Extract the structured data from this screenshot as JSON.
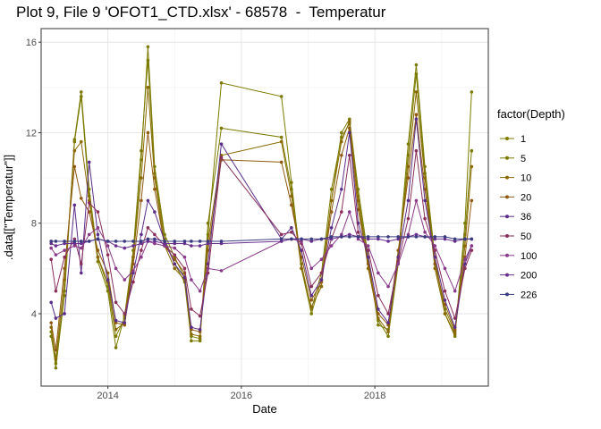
{
  "chart_data": {
    "type": "line",
    "title": "Plot 9, File 9 'OFOT1_CTD.xlsx' - 68578  -  Temperatur",
    "xlabel": "Date",
    "ylabel": ".data[[\"Temperatur\"]]",
    "xlim": [
      2013.0,
      2019.7
    ],
    "ylim": [
      0.8,
      16.6
    ],
    "x_ticks": [
      2014,
      2016,
      2018
    ],
    "x_tick_labels": [
      "2014",
      "2016",
      "2018"
    ],
    "y_ticks": [
      4,
      8,
      12,
      16
    ],
    "y_tick_labels": [
      "4",
      "8",
      "12",
      "16"
    ],
    "grid": true,
    "legend": {
      "title": "factor(Depth)",
      "position": "right"
    },
    "series": [
      {
        "name": "1",
        "color": "#7c7c00",
        "x": [
          2013.15,
          2013.22,
          2013.35,
          2013.5,
          2013.6,
          2013.72,
          2013.85,
          2014.0,
          2014.12,
          2014.25,
          2014.38,
          2014.5,
          2014.6,
          2014.7,
          2014.85,
          2015.0,
          2015.15,
          2015.25,
          2015.38,
          2015.5,
          2015.7,
          2016.6,
          2016.75,
          2016.9,
          2017.05,
          2017.2,
          2017.35,
          2017.5,
          2017.62,
          2017.75,
          2017.9,
          2018.05,
          2018.2,
          2018.35,
          2018.5,
          2018.62,
          2018.75,
          2018.9,
          2019.05,
          2019.2,
          2019.35,
          2019.45
        ],
        "y": [
          3.2,
          1.6,
          4.8,
          11.7,
          13.8,
          9.5,
          6.5,
          5.2,
          3.0,
          3.8,
          6.5,
          10.8,
          15.8,
          10.5,
          7.5,
          6.5,
          5.6,
          3.0,
          2.9,
          7.5,
          14.2,
          13.6,
          9.8,
          6.0,
          4.0,
          5.5,
          9.0,
          12.0,
          12.6,
          9.5,
          6.5,
          3.5,
          3.3,
          6.5,
          11.5,
          15.0,
          10.5,
          6.5,
          4.0,
          3.0,
          8.0,
          13.8
        ]
      },
      {
        "name": "5",
        "color": "#7a7a00",
        "x": [
          2013.15,
          2013.22,
          2013.35,
          2013.5,
          2013.6,
          2013.72,
          2013.85,
          2014.0,
          2014.12,
          2014.25,
          2014.38,
          2014.5,
          2014.6,
          2014.7,
          2014.85,
          2015.0,
          2015.15,
          2015.25,
          2015.38,
          2015.5,
          2015.7,
          2016.6,
          2016.75,
          2016.9,
          2017.05,
          2017.2,
          2017.35,
          2017.5,
          2017.62,
          2017.75,
          2017.9,
          2018.05,
          2018.2,
          2018.35,
          2018.5,
          2018.62,
          2018.75,
          2018.9,
          2019.05,
          2019.2,
          2019.35,
          2019.45
        ],
        "y": [
          3.0,
          1.8,
          5.0,
          11.6,
          13.6,
          9.2,
          6.3,
          5.0,
          2.5,
          3.9,
          6.8,
          11.2,
          15.2,
          10.2,
          7.3,
          6.2,
          5.4,
          2.8,
          2.8,
          8.0,
          12.2,
          11.8,
          9.5,
          6.2,
          4.2,
          5.8,
          9.5,
          11.8,
          12.4,
          9.2,
          6.3,
          3.7,
          3.0,
          6.2,
          11.0,
          14.6,
          10.2,
          6.2,
          4.2,
          3.2,
          7.5,
          11.2
        ]
      },
      {
        "name": "10",
        "color": "#8a6a00",
        "x": [
          2013.15,
          2013.22,
          2013.35,
          2013.5,
          2013.6,
          2013.72,
          2013.85,
          2014.0,
          2014.12,
          2014.25,
          2014.38,
          2014.5,
          2014.6,
          2014.7,
          2014.85,
          2015.0,
          2015.15,
          2015.25,
          2015.38,
          2015.5,
          2015.7,
          2016.6,
          2016.75,
          2016.9,
          2017.05,
          2017.2,
          2017.35,
          2017.5,
          2017.62,
          2017.75,
          2017.9,
          2018.05,
          2018.2,
          2018.35,
          2018.5,
          2018.62,
          2018.75,
          2018.9,
          2019.05,
          2019.2,
          2019.35,
          2019.45
        ],
        "y": [
          3.4,
          2.0,
          5.5,
          11.2,
          11.6,
          9.0,
          6.5,
          5.4,
          3.3,
          3.6,
          6.5,
          10.0,
          14.0,
          10.0,
          7.0,
          6.0,
          5.5,
          3.1,
          3.0,
          7.2,
          11.0,
          11.6,
          9.2,
          6.0,
          4.3,
          5.2,
          9.0,
          11.6,
          12.5,
          9.0,
          6.0,
          3.8,
          3.2,
          6.5,
          10.5,
          13.8,
          10.0,
          6.0,
          4.0,
          3.1,
          7.0,
          10.5
        ]
      },
      {
        "name": "20",
        "color": "#8f5a10",
        "x": [
          2013.15,
          2013.22,
          2013.35,
          2013.5,
          2013.6,
          2013.72,
          2013.85,
          2014.0,
          2014.12,
          2014.25,
          2014.38,
          2014.5,
          2014.6,
          2014.7,
          2014.85,
          2015.0,
          2015.15,
          2015.25,
          2015.38,
          2015.5,
          2015.7,
          2016.6,
          2016.75,
          2016.9,
          2017.05,
          2017.2,
          2017.35,
          2017.5,
          2017.62,
          2017.75,
          2017.9,
          2018.05,
          2018.2,
          2018.35,
          2018.5,
          2018.62,
          2018.75,
          2018.9,
          2019.05,
          2019.2,
          2019.35,
          2019.45
        ],
        "y": [
          3.6,
          2.4,
          6.0,
          10.5,
          9.1,
          8.5,
          6.8,
          5.8,
          3.6,
          3.5,
          6.2,
          9.0,
          12.0,
          9.5,
          7.0,
          6.4,
          5.8,
          3.3,
          3.2,
          6.8,
          10.8,
          10.7,
          8.8,
          6.5,
          4.6,
          5.4,
          8.5,
          11.0,
          12.2,
          8.6,
          6.2,
          4.0,
          3.5,
          6.8,
          10.0,
          12.8,
          9.5,
          6.2,
          4.4,
          3.3,
          6.5,
          9.0
        ]
      },
      {
        "name": "36",
        "color": "#5a2e8a",
        "x": [
          2013.15,
          2013.22,
          2013.35,
          2013.5,
          2013.6,
          2013.72,
          2013.85,
          2014.0,
          2014.12,
          2014.25,
          2014.38,
          2014.5,
          2014.6,
          2014.7,
          2014.85,
          2015.0,
          2015.15,
          2015.25,
          2015.38,
          2015.5,
          2015.7,
          2016.6,
          2016.75,
          2016.9,
          2017.05,
          2017.2,
          2017.35,
          2017.5,
          2017.62,
          2017.75,
          2017.9,
          2018.05,
          2018.2,
          2018.35,
          2018.5,
          2018.62,
          2018.75,
          2018.9,
          2019.05,
          2019.2,
          2019.35,
          2019.45
        ],
        "y": [
          4.5,
          3.8,
          4.0,
          8.8,
          5.8,
          10.7,
          7.5,
          5.5,
          3.7,
          3.6,
          5.8,
          7.5,
          9.0,
          8.5,
          7.2,
          6.2,
          5.6,
          3.4,
          3.3,
          6.2,
          11.5,
          7.3,
          7.8,
          6.8,
          4.8,
          5.5,
          7.8,
          9.5,
          12.0,
          8.0,
          6.5,
          4.2,
          3.6,
          6.5,
          9.0,
          12.6,
          9.0,
          6.5,
          4.6,
          3.4,
          6.2,
          7.0
        ]
      },
      {
        "name": "50",
        "color": "#8a2e5a",
        "x": [
          2013.15,
          2013.22,
          2013.35,
          2013.5,
          2013.6,
          2013.72,
          2013.85,
          2014.0,
          2014.12,
          2014.25,
          2014.38,
          2014.5,
          2014.6,
          2014.7,
          2014.85,
          2015.0,
          2015.15,
          2015.25,
          2015.38,
          2015.5,
          2015.7,
          2016.6,
          2016.75,
          2016.9,
          2017.05,
          2017.2,
          2017.35,
          2017.5,
          2017.62,
          2017.75,
          2017.9,
          2018.05,
          2018.2,
          2018.35,
          2018.5,
          2018.62,
          2018.75,
          2018.9,
          2019.05,
          2019.2,
          2019.35,
          2019.45
        ],
        "y": [
          6.4,
          5.0,
          6.5,
          7.3,
          6.2,
          8.9,
          8.5,
          6.6,
          4.5,
          4.0,
          5.4,
          6.8,
          7.8,
          7.5,
          7.0,
          6.6,
          6.0,
          4.2,
          3.9,
          5.8,
          10.9,
          7.5,
          7.6,
          7.1,
          5.2,
          5.8,
          7.3,
          8.5,
          11.0,
          7.6,
          6.8,
          4.8,
          4.0,
          6.3,
          8.2,
          11.2,
          8.2,
          6.8,
          5.0,
          3.8,
          6.0,
          6.8
        ]
      },
      {
        "name": "100",
        "color": "#8a3a8a",
        "x": [
          2013.15,
          2013.22,
          2013.35,
          2013.5,
          2013.6,
          2013.72,
          2013.85,
          2014.0,
          2014.12,
          2014.25,
          2014.38,
          2014.5,
          2014.6,
          2014.7,
          2014.85,
          2015.0,
          2015.15,
          2015.25,
          2015.38,
          2015.5,
          2015.7,
          2016.6,
          2016.75,
          2016.9,
          2017.05,
          2017.2,
          2017.35,
          2017.5,
          2017.62,
          2017.75,
          2017.9,
          2018.05,
          2018.2,
          2018.35,
          2018.5,
          2018.62,
          2018.75,
          2018.9,
          2019.05,
          2019.2,
          2019.35,
          2019.45
        ],
        "y": [
          6.9,
          6.6,
          6.8,
          7.0,
          6.9,
          7.5,
          7.8,
          7.0,
          6.0,
          5.5,
          5.9,
          6.5,
          7.2,
          7.1,
          7.0,
          6.9,
          6.5,
          5.5,
          5.0,
          6.0,
          5.9,
          7.2,
          7.3,
          7.2,
          6.0,
          6.4,
          7.0,
          7.5,
          8.5,
          7.3,
          7.0,
          5.8,
          5.2,
          6.2,
          7.5,
          9.0,
          7.6,
          7.0,
          6.0,
          5.0,
          6.4,
          7.0
        ]
      },
      {
        "name": "200",
        "color": "#6a3090",
        "x": [
          2013.15,
          2013.22,
          2013.35,
          2013.5,
          2013.6,
          2013.72,
          2013.85,
          2014.0,
          2014.12,
          2014.25,
          2014.38,
          2014.5,
          2014.6,
          2014.7,
          2014.85,
          2015.0,
          2015.15,
          2015.25,
          2015.38,
          2015.5,
          2015.7,
          2016.6,
          2016.75,
          2016.9,
          2017.05,
          2017.2,
          2017.35,
          2017.5,
          2017.62,
          2017.75,
          2017.9,
          2018.05,
          2018.2,
          2018.35,
          2018.5,
          2018.62,
          2018.75,
          2018.9,
          2019.05,
          2019.2,
          2019.35,
          2019.45
        ],
        "y": [
          7.1,
          7.0,
          7.1,
          7.1,
          7.1,
          7.2,
          7.3,
          7.2,
          7.0,
          6.9,
          7.0,
          7.1,
          7.2,
          7.2,
          7.1,
          7.1,
          7.1,
          7.0,
          7.0,
          7.1,
          7.1,
          7.2,
          7.3,
          7.3,
          7.2,
          7.3,
          7.3,
          7.4,
          7.5,
          7.4,
          7.3,
          7.3,
          7.2,
          7.3,
          7.4,
          7.5,
          7.4,
          7.3,
          7.3,
          7.2,
          7.3,
          7.3
        ]
      },
      {
        "name": "226",
        "color": "#3a3a80",
        "x": [
          2013.15,
          2013.22,
          2013.35,
          2013.5,
          2013.6,
          2013.72,
          2013.85,
          2014.0,
          2014.12,
          2014.25,
          2014.38,
          2014.5,
          2014.6,
          2014.7,
          2014.85,
          2015.0,
          2015.15,
          2015.25,
          2015.38,
          2015.5,
          2015.7,
          2016.6,
          2016.75,
          2016.9,
          2017.05,
          2017.2,
          2017.35,
          2017.5,
          2017.62,
          2017.75,
          2017.9,
          2018.05,
          2018.2,
          2018.35,
          2018.5,
          2018.62,
          2018.75,
          2018.9,
          2019.05,
          2019.2,
          2019.35,
          2019.45
        ],
        "y": [
          7.2,
          7.2,
          7.2,
          7.2,
          7.2,
          7.2,
          7.3,
          7.2,
          7.2,
          7.2,
          7.2,
          7.2,
          7.3,
          7.3,
          7.2,
          7.2,
          7.2,
          7.2,
          7.2,
          7.2,
          7.2,
          7.3,
          7.3,
          7.3,
          7.3,
          7.3,
          7.4,
          7.4,
          7.4,
          7.4,
          7.4,
          7.4,
          7.4,
          7.4,
          7.4,
          7.4,
          7.4,
          7.4,
          7.4,
          7.3,
          7.3,
          7.3
        ]
      }
    ]
  }
}
